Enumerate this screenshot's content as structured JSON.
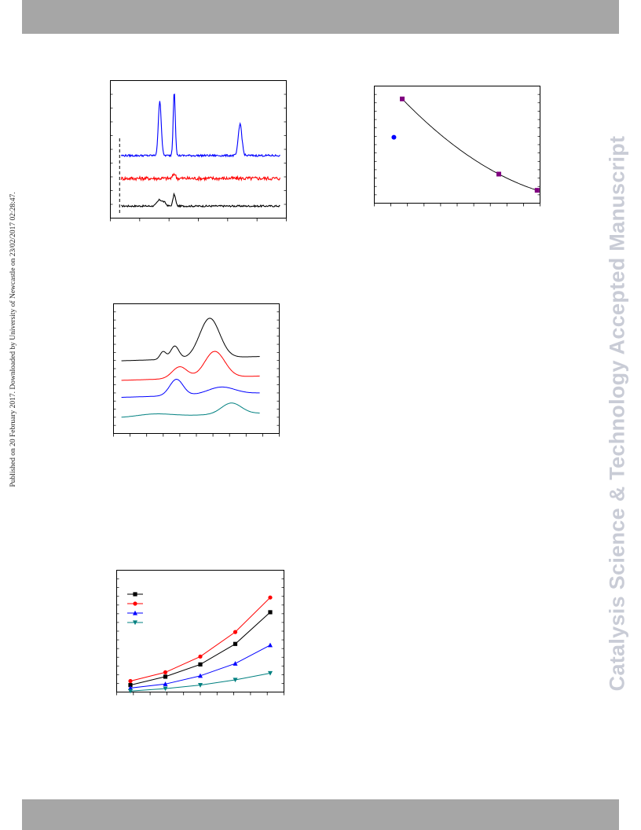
{
  "sidebar_left": {
    "text": "Published on 20 February 2017. Downloaded by University of Newcastle on 23/02/2017 02:28:47."
  },
  "watermark": {
    "text": "Catalysis Science & Technology Accepted Manuscript"
  },
  "colors": {
    "black": "#000000",
    "red": "#ff0000",
    "blue": "#0000ff",
    "teal": "#008080",
    "purple": "#800080",
    "header_bar": "#a6a6a6",
    "watermark": "#c9ccd6"
  },
  "chart_data": [
    {
      "type": "line",
      "xlim": [
        0,
        110
      ],
      "ylim": [
        0,
        10
      ],
      "marker_line_x": 6,
      "series": [
        {
          "color": "#000000",
          "kind": "xrd",
          "baseline": 0.9,
          "noise": 0.06,
          "peaks": [
            [
              31,
              0.45,
              1.6
            ],
            [
              40,
              0.85,
              0.8
            ],
            [
              34,
              0.2,
              1.0
            ]
          ]
        },
        {
          "color": "#ff0000",
          "kind": "xrd",
          "baseline": 2.9,
          "noise": 0.13,
          "peaks": [
            [
              40,
              0.35,
              0.8
            ]
          ]
        },
        {
          "color": "#0000ff",
          "kind": "xrd",
          "baseline": 4.55,
          "noise": 0.07,
          "peaks": [
            [
              31,
              4.0,
              0.9
            ],
            [
              40,
              4.7,
              0.65
            ],
            [
              81,
              2.3,
              1.1
            ]
          ]
        }
      ]
    },
    {
      "type": "scatter",
      "xlim": [
        0,
        100
      ],
      "ylim": [
        0,
        8
      ],
      "series": [
        {
          "color": "#800080",
          "marker": "square",
          "x": [
            17,
            75,
            98
          ],
          "y": [
            7.1,
            2.0,
            0.9
          ]
        },
        {
          "color": "#0000ff",
          "marker": "circle",
          "x": [
            12
          ],
          "y": [
            4.5
          ]
        }
      ],
      "fit_line": {
        "color": "#000000",
        "from": 17,
        "to": 98
      }
    },
    {
      "type": "line",
      "xlim": [
        0,
        100
      ],
      "ylim": [
        0,
        10
      ],
      "series": [
        {
          "color": "#000000",
          "kind": "tpr",
          "baseline": 5.6,
          "bumps": [
            [
              30,
              0.6,
              1.8
            ],
            [
              37,
              1.0,
              2.5
            ],
            [
              58,
              3.05,
              6.0
            ]
          ]
        },
        {
          "color": "#ff0000",
          "kind": "tpr",
          "baseline": 4.1,
          "bumps": [
            [
              40,
              0.9,
              4.5
            ],
            [
              61,
              2.0,
              6.0
            ]
          ]
        },
        {
          "color": "#0000ff",
          "kind": "tpr",
          "baseline": 2.8,
          "bumps": [
            [
              38,
              1.25,
              4.0
            ],
            [
              65,
              0.55,
              8.0
            ]
          ]
        },
        {
          "color": "#008080",
          "kind": "tpr",
          "baseline": 1.25,
          "bumps": [
            [
              25,
              0.2,
              10.0
            ],
            [
              71,
              0.85,
              6.0
            ]
          ]
        }
      ]
    },
    {
      "type": "line",
      "categories": [
        1,
        2,
        3,
        4,
        5
      ],
      "ylim": [
        0,
        7
      ],
      "series": [
        {
          "color": "#000000",
          "marker": "square",
          "values": [
            0.42,
            0.9,
            1.6,
            2.77,
            4.58
          ]
        },
        {
          "color": "#ff0000",
          "marker": "circle",
          "values": [
            0.65,
            1.15,
            2.05,
            3.45,
            5.42
          ]
        },
        {
          "color": "#0000ff",
          "marker": "triangle-up",
          "values": [
            0.25,
            0.48,
            0.95,
            1.65,
            2.7
          ]
        },
        {
          "color": "#008080",
          "marker": "triangle-down",
          "values": [
            0.08,
            0.22,
            0.42,
            0.72,
            1.1
          ]
        }
      ],
      "legend": {
        "position": "top-left"
      }
    }
  ]
}
